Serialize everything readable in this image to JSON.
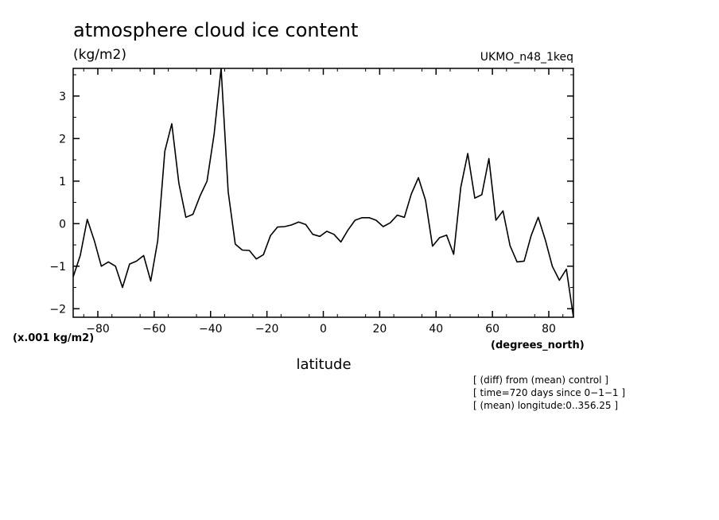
{
  "chart_data": {
    "type": "line",
    "title": "atmosphere cloud ice content",
    "units": "(kg/m2)",
    "model": "UKMO_n48_1keq",
    "scale_label": "(x.001 kg/m2)",
    "xlabel": "latitude",
    "xunits": "(degrees_north)",
    "xlim": [
      -88.75,
      88.75
    ],
    "ylim": [
      -2.2,
      3.65
    ],
    "x_ticks": [
      -80,
      -60,
      -40,
      -20,
      0,
      20,
      40,
      60,
      80
    ],
    "x_tick_labels": [
      "−80",
      "−60",
      "−40",
      "−20",
      "0",
      "20",
      "40",
      "60",
      "80"
    ],
    "y_ticks": [
      -2,
      -1,
      0,
      1,
      2,
      3
    ],
    "y_tick_labels": [
      "−2",
      "−1",
      "0",
      "1",
      "2",
      "3"
    ],
    "notes": [
      "[ (diff) from (mean) control ]",
      "[ time=720 days since 0−1−1 ]",
      "[ (mean) longitude:0..356.25 ]"
    ],
    "series": [
      {
        "color": "#000000",
        "x": [
          -88.75,
          -86.25,
          -83.75,
          -81.25,
          -78.75,
          -76.25,
          -73.75,
          -71.25,
          -68.75,
          -66.25,
          -63.75,
          -61.25,
          -58.75,
          -56.25,
          -53.75,
          -51.25,
          -48.75,
          -46.25,
          -43.75,
          -41.25,
          -38.75,
          -36.25,
          -33.75,
          -31.25,
          -28.75,
          -26.25,
          -23.75,
          -21.25,
          -18.75,
          -16.25,
          -13.75,
          -11.25,
          -8.75,
          -6.25,
          -3.75,
          -1.25,
          1.25,
          3.75,
          6.25,
          8.75,
          11.25,
          13.75,
          16.25,
          18.75,
          21.25,
          23.75,
          26.25,
          28.75,
          31.25,
          33.75,
          36.25,
          38.75,
          41.25,
          43.75,
          46.25,
          48.75,
          51.25,
          53.75,
          56.25,
          58.75,
          61.25,
          63.75,
          66.25,
          68.75,
          71.25,
          73.75,
          76.25,
          78.75,
          81.25,
          83.75,
          86.25,
          88.75
        ],
        "values": [
          -1.25,
          -0.75,
          0.1,
          -0.4,
          -1.0,
          -0.9,
          -1.0,
          -1.5,
          -0.95,
          -0.88,
          -0.75,
          -1.35,
          -0.4,
          1.7,
          2.35,
          0.95,
          0.15,
          0.22,
          0.65,
          1.0,
          2.1,
          3.65,
          0.75,
          -0.48,
          -0.62,
          -0.63,
          -0.83,
          -0.73,
          -0.28,
          -0.08,
          -0.07,
          -0.03,
          0.04,
          -0.02,
          -0.25,
          -0.3,
          -0.18,
          -0.25,
          -0.43,
          -0.15,
          0.08,
          0.14,
          0.14,
          0.08,
          -0.07,
          0.02,
          0.2,
          0.15,
          0.7,
          1.08,
          0.55,
          -0.53,
          -0.33,
          -0.27,
          -0.72,
          0.85,
          1.65,
          0.6,
          0.68,
          1.53,
          0.08,
          0.3,
          -0.52,
          -0.9,
          -0.88,
          -0.28,
          0.15,
          -0.38,
          -1.0,
          -1.33,
          -1.07,
          -2.2
        ]
      }
    ]
  }
}
